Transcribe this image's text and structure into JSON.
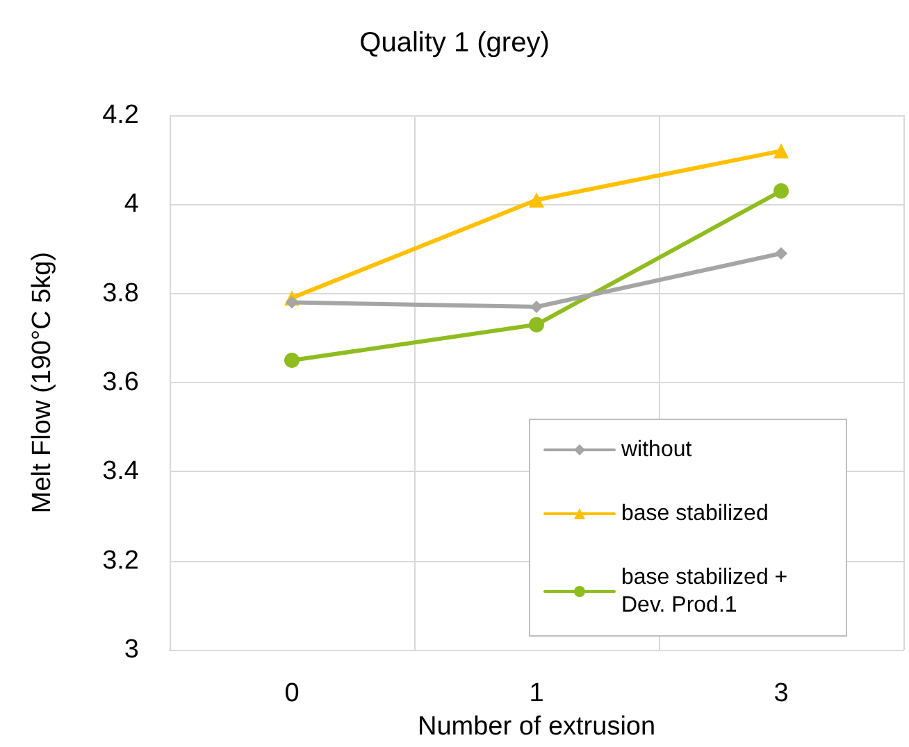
{
  "chart_data": {
    "type": "line",
    "title": "Quality 1 (grey)",
    "xlabel": "Number of extrusion",
    "ylabel": "Melt Flow (190°C 5kg)",
    "categories": [
      "0",
      "1",
      "3"
    ],
    "series": [
      {
        "name": "without",
        "color": "#a5a5a5",
        "marker": "diamond",
        "values": [
          3.78,
          3.77,
          3.89
        ]
      },
      {
        "name": "base stabilized",
        "color": "#ffc000",
        "marker": "triangle",
        "values": [
          3.79,
          4.01,
          4.12
        ]
      },
      {
        "name": "base stabilized + Dev. Prod.1",
        "color": "#8fbc1f",
        "marker": "circle",
        "values": [
          3.65,
          3.73,
          4.03
        ]
      }
    ],
    "ylim": [
      3,
      4.2
    ],
    "yticks": [
      3,
      3.2,
      3.4,
      3.6,
      3.8,
      4,
      4.2
    ],
    "grid": true,
    "legend": "bottom right",
    "line_style": "solid"
  }
}
